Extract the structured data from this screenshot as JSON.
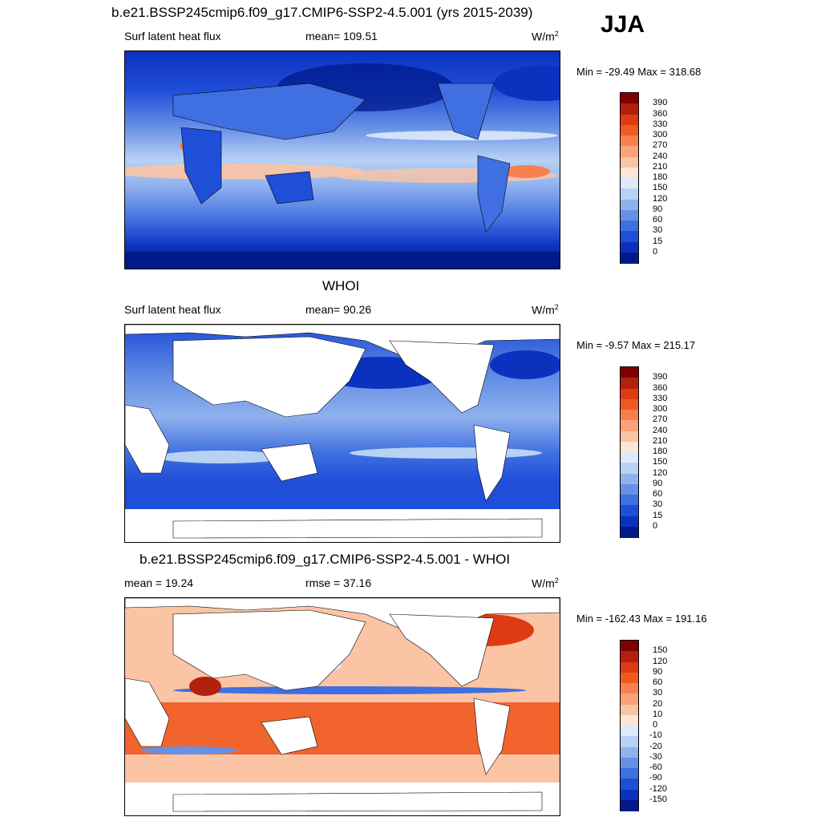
{
  "season": "JJA",
  "panels": [
    {
      "title": "b.e21.BSSP245cmip6.f09_g17.CMIP6-SSP2-4.5.001 (yrs 2015-2039)",
      "left_label": "Surf latent heat flux",
      "center_label": "mean= 109.51",
      "units_base": "W/m",
      "units_exp": "2",
      "minmax": "Min = -29.49 Max = 318.68",
      "field": "model",
      "colorbar": {
        "levels": [
          "390",
          "360",
          "330",
          "300",
          "270",
          "240",
          "210",
          "180",
          "150",
          "120",
          "90",
          "60",
          "30",
          "15",
          "0"
        ],
        "colors": [
          "#800000",
          "#b3200e",
          "#de3b12",
          "#f05a20",
          "#f7804f",
          "#f9a27b",
          "#fbc4a5",
          "#fde6d6",
          "#dceafb",
          "#b8d2f5",
          "#8fb1ee",
          "#6690e6",
          "#3f6fe0",
          "#1f4ed8",
          "#0b32bf",
          "#001a8c"
        ]
      }
    },
    {
      "title": "WHOI",
      "left_label": "Surf latent heat flux",
      "center_label": "mean=  90.26",
      "units_base": "W/m",
      "units_exp": "2",
      "minmax": "Min =  -9.57 Max = 215.17",
      "field": "obs",
      "colorbar": {
        "levels": [
          "390",
          "360",
          "330",
          "300",
          "270",
          "240",
          "210",
          "180",
          "150",
          "120",
          "90",
          "60",
          "30",
          "15",
          "0"
        ],
        "colors": [
          "#800000",
          "#b3200e",
          "#de3b12",
          "#f05a20",
          "#f7804f",
          "#f9a27b",
          "#fbc4a5",
          "#fde6d6",
          "#dceafb",
          "#b8d2f5",
          "#8fb1ee",
          "#6690e6",
          "#3f6fe0",
          "#1f4ed8",
          "#0b32bf",
          "#001a8c"
        ]
      }
    },
    {
      "title": "b.e21.BSSP245cmip6.f09_g17.CMIP6-SSP2-4.5.001 - WHOI",
      "left_label": "mean =  19.24",
      "center_label": "rmse =  37.16",
      "units_base": "W/m",
      "units_exp": "2",
      "minmax": "Min = -162.43 Max = 191.16",
      "field": "diff",
      "colorbar": {
        "levels": [
          "150",
          "120",
          "90",
          "60",
          "30",
          "20",
          "10",
          "0",
          "-10",
          "-20",
          "-30",
          "-60",
          "-90",
          "-120",
          "-150"
        ],
        "colors": [
          "#800000",
          "#b3200e",
          "#de3b12",
          "#f05a20",
          "#f7804f",
          "#f9a27b",
          "#fbc4a5",
          "#fde6d6",
          "#dceafb",
          "#b8d2f5",
          "#8fb1ee",
          "#6690e6",
          "#3f6fe0",
          "#1f4ed8",
          "#0b32bf",
          "#001a8c"
        ]
      }
    }
  ],
  "chart_data": [
    {
      "type": "heatmap",
      "title": "b.e21.BSSP245cmip6.f09_g17.CMIP6-SSP2-4.5.001 (yrs 2015-2039)",
      "variable": "Surf latent heat flux",
      "units": "W/m2",
      "mean": 109.51,
      "min": -29.49,
      "max": 318.68,
      "contour_levels": [
        0,
        15,
        30,
        60,
        90,
        120,
        150,
        180,
        210,
        240,
        270,
        300,
        330,
        360,
        390
      ]
    },
    {
      "type": "heatmap",
      "title": "WHOI",
      "variable": "Surf latent heat flux",
      "units": "W/m2",
      "mean": 90.26,
      "min": -9.57,
      "max": 215.17,
      "contour_levels": [
        0,
        15,
        30,
        60,
        90,
        120,
        150,
        180,
        210,
        240,
        270,
        300,
        330,
        360,
        390
      ]
    },
    {
      "type": "heatmap",
      "title": "b.e21.BSSP245cmip6.f09_g17.CMIP6-SSP2-4.5.001 - WHOI",
      "units": "W/m2",
      "mean": 19.24,
      "rmse": 37.16,
      "min": -162.43,
      "max": 191.16,
      "contour_levels": [
        -150,
        -120,
        -90,
        -60,
        -30,
        -20,
        -10,
        0,
        10,
        20,
        30,
        60,
        90,
        120,
        150
      ]
    }
  ]
}
